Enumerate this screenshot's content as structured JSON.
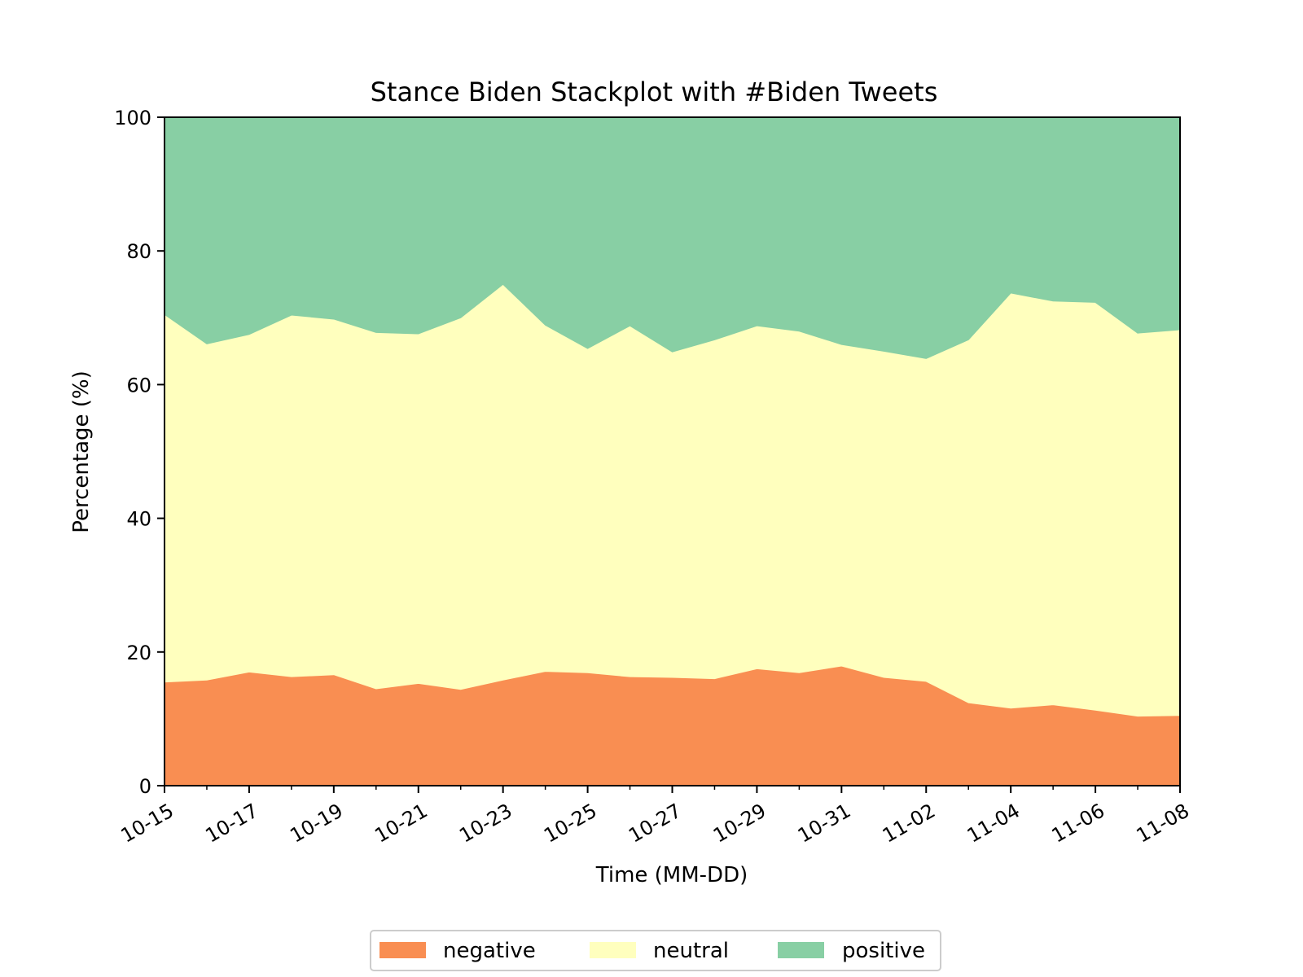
{
  "chart_data": {
    "type": "area",
    "stacked": true,
    "title": "Stance Biden Stackplot with #Biden Tweets",
    "xlabel": "Time (MM-DD)",
    "ylabel": "Percentage (%)",
    "ylim": [
      0,
      100
    ],
    "yticks": [
      "0",
      "20",
      "40",
      "60",
      "80",
      "100"
    ],
    "x": [
      "10-15",
      "10-16",
      "10-17",
      "10-18",
      "10-19",
      "10-20",
      "10-21",
      "10-22",
      "10-23",
      "10-24",
      "10-25",
      "10-26",
      "10-27",
      "10-28",
      "10-29",
      "10-30",
      "10-31",
      "11-01",
      "11-02",
      "11-03",
      "11-04",
      "11-05",
      "11-06",
      "11-07",
      "11-08"
    ],
    "xticks": [
      "10-15",
      "10-17",
      "10-19",
      "10-21",
      "10-23",
      "10-25",
      "10-27",
      "10-29",
      "10-31",
      "11-02",
      "11-04",
      "11-06",
      "11-08"
    ],
    "series": [
      {
        "name": "negative",
        "color": "#f98e52",
        "values": [
          15.5,
          15.8,
          17.0,
          16.3,
          16.6,
          14.5,
          15.3,
          14.4,
          15.8,
          17.1,
          16.9,
          16.3,
          16.2,
          16.0,
          17.5,
          16.9,
          17.9,
          16.2,
          15.6,
          12.4,
          11.6,
          12.1,
          11.3,
          10.4,
          10.5
        ]
      },
      {
        "name": "neutral",
        "color": "#ffffbe",
        "values": [
          55.0,
          50.3,
          50.5,
          54.1,
          53.2,
          53.3,
          52.3,
          55.6,
          59.2,
          51.8,
          48.5,
          52.5,
          48.7,
          50.7,
          51.3,
          51.1,
          48.1,
          48.8,
          48.3,
          54.3,
          62.1,
          60.4,
          61.0,
          57.3,
          57.7
        ]
      },
      {
        "name": "positive",
        "color": "#88cfa4",
        "values": [
          29.5,
          33.9,
          32.5,
          29.6,
          30.2,
          32.2,
          32.4,
          30.0,
          25.0,
          31.1,
          34.6,
          31.2,
          35.1,
          33.3,
          31.2,
          32.0,
          34.0,
          35.0,
          36.1,
          33.3,
          26.3,
          27.5,
          27.7,
          32.3,
          31.8
        ]
      }
    ],
    "legend": {
      "position": "bottom-center",
      "entries": [
        "negative",
        "neutral",
        "positive"
      ]
    },
    "grid": false
  }
}
